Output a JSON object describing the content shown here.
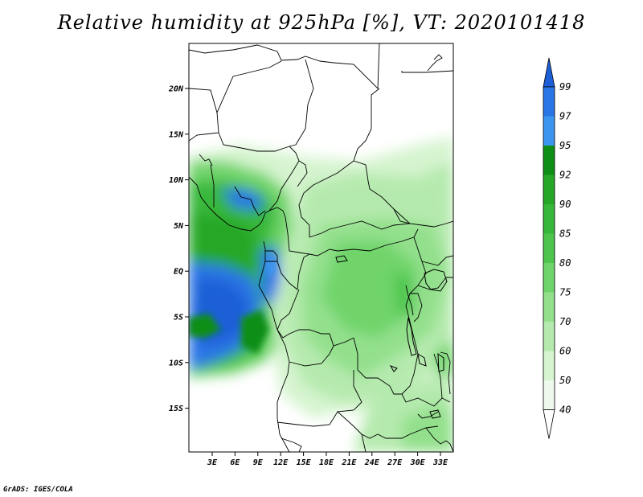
{
  "title": "Relative humidity at 925hPa [%], VT: 2020101418",
  "credit": "GrADS: IGES/COLA",
  "map": {
    "lat_labels": [
      "20N",
      "15N",
      "10N",
      "5N",
      "EQ",
      "5S",
      "10S",
      "15S"
    ],
    "lon_labels": [
      "3E",
      "6E",
      "9E",
      "12E",
      "15E",
      "18E",
      "21E",
      "24E",
      "27E",
      "30E",
      "33E"
    ]
  },
  "colorbar": {
    "labels": [
      "99",
      "97",
      "95",
      "92",
      "90",
      "85",
      "80",
      "75",
      "70",
      "60",
      "50",
      "40"
    ],
    "colors": [
      "#1c5fd6",
      "#2a76e6",
      "#3c96f0",
      "#0f8e17",
      "#26a728",
      "#37b83a",
      "#4ec64e",
      "#6fd46b",
      "#93e08c",
      "#b5eaae",
      "#d5f4cf",
      "#eefbec",
      "#ffffff"
    ]
  }
}
